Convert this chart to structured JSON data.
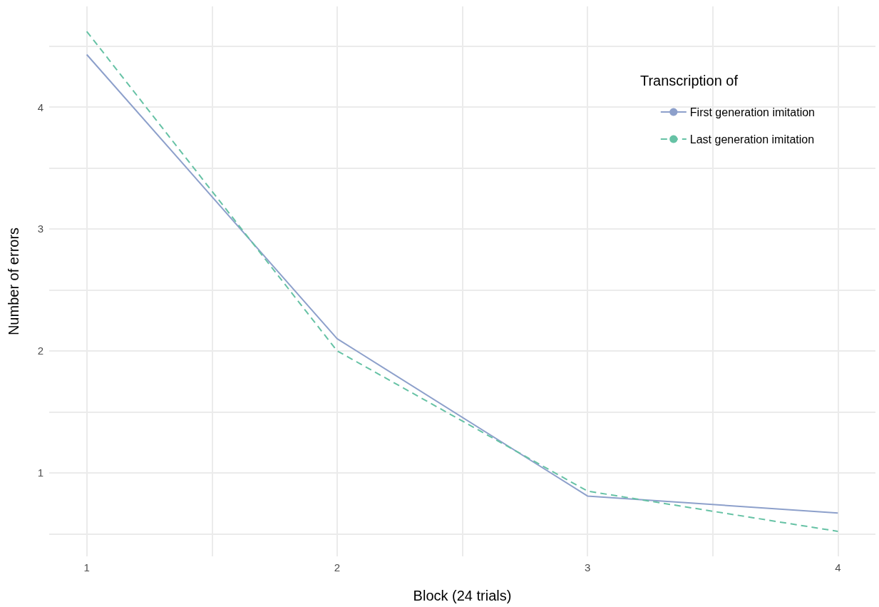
{
  "chart_data": {
    "type": "line",
    "xlabel": "Block (24 trials)",
    "ylabel": "Number of errors",
    "legend_title": "Transcription of",
    "x": [
      1,
      2,
      3,
      4
    ],
    "series": [
      {
        "name": "First generation imitation",
        "color": "#8da0cb",
        "line_style": "solid",
        "values": [
          4.43,
          2.1,
          0.81,
          0.67
        ]
      },
      {
        "name": "Last generation imitation",
        "color": "#66c2a5",
        "line_style": "dashed",
        "values": [
          4.62,
          2.0,
          0.85,
          0.52
        ]
      }
    ],
    "xlim": [
      0.85,
      4.15
    ],
    "xticks": [
      1,
      {
        "value": 1.5,
        "label": null
      },
      2,
      {
        "value": 2.5,
        "label": null
      },
      3,
      {
        "value": 3.5,
        "label": null
      },
      4
    ],
    "ylim": [
      0.315,
      4.825
    ],
    "yticks": [
      {
        "value": 0.5,
        "label": null
      },
      1,
      {
        "value": 1.5,
        "label": null
      },
      2,
      {
        "value": 2.5,
        "label": null
      },
      3,
      {
        "value": 3.5,
        "label": null
      },
      4,
      {
        "value": 4.5,
        "label": null
      }
    ],
    "grid": true,
    "legend": "top right",
    "marker": "none"
  }
}
